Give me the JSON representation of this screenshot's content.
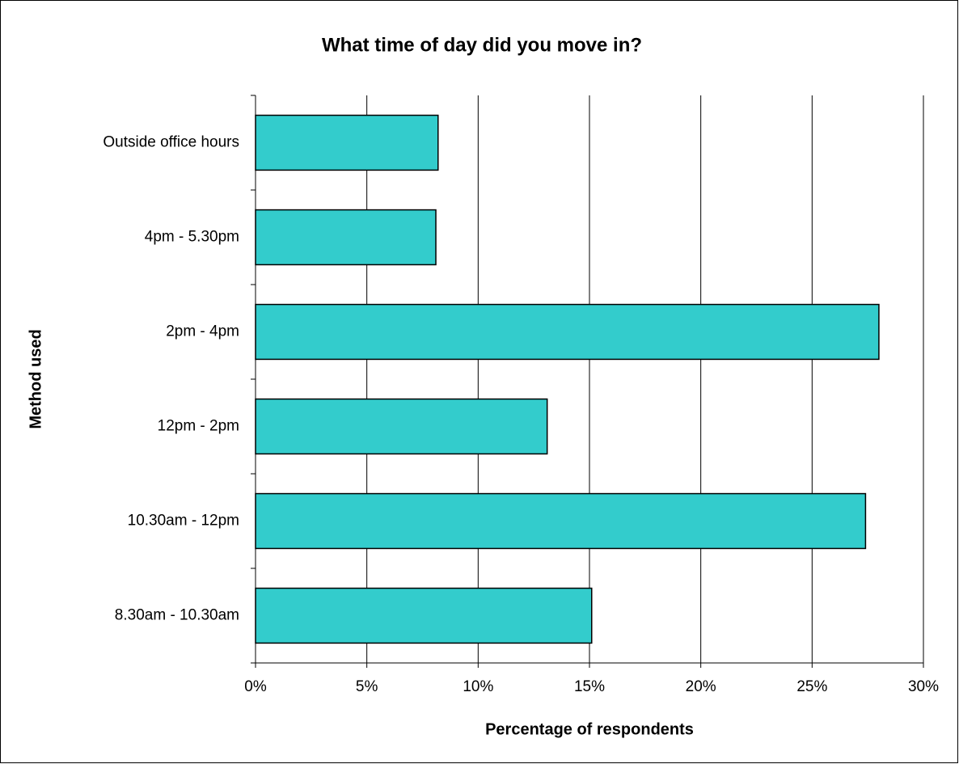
{
  "chart_data": {
    "type": "bar",
    "orientation": "horizontal",
    "title": "What time of day did you move in?",
    "x_label": "Percentage of respondents",
    "y_label": "Method used",
    "categories": [
      "Outside office hours",
      "4pm - 5.30pm",
      "2pm - 4pm",
      "12pm - 2pm",
      "10.30am - 12pm",
      "8.30am - 10.30am"
    ],
    "values": [
      8.2,
      8.1,
      28.0,
      13.1,
      27.4,
      15.1
    ],
    "color": "#33cccc",
    "xlim": [
      0,
      30
    ],
    "xticks": [
      {
        "value": 0,
        "label": "0%"
      },
      {
        "value": 5,
        "label": "5%"
      },
      {
        "value": 10,
        "label": "10%"
      },
      {
        "value": 15,
        "label": "15%"
      },
      {
        "value": 20,
        "label": "20%"
      },
      {
        "value": 25,
        "label": "25%"
      },
      {
        "value": 30,
        "label": "30%"
      }
    ],
    "grid": true
  }
}
